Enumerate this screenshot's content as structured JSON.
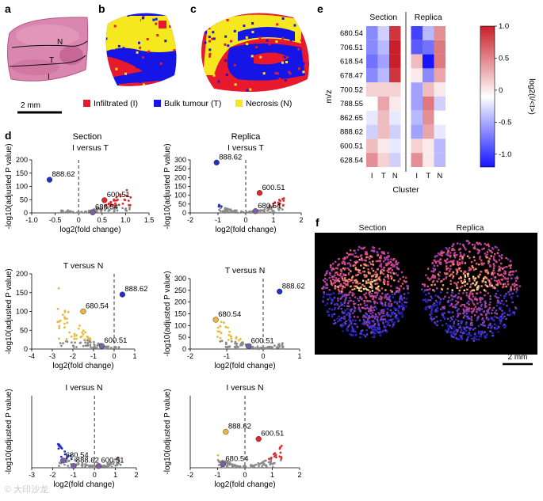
{
  "panel_letters": {
    "a": "a",
    "b": "b",
    "c": "c",
    "d": "d",
    "e": "e",
    "f": "f"
  },
  "panel_a": {
    "region_labels": [
      "N",
      "T",
      "I"
    ],
    "scale_bar": "2 mm"
  },
  "legend_abc": [
    {
      "label": "Infiltrated (I)",
      "color": "#e8192c"
    },
    {
      "label": "Bulk tumour (T)",
      "color": "#1515e6"
    },
    {
      "label": "Necrosis (N)",
      "color": "#f5e81e"
    }
  ],
  "panel_d": {
    "column_titles": [
      "Section",
      "Replica"
    ],
    "point_colors": {
      "grey": "#8a8a8a",
      "red": "#e0282c",
      "blue": "#2230c8",
      "yellow": "#e8b93a",
      "violet": "#7b5fa8"
    },
    "xlabel": "log2(fold change)",
    "ylabel": "-log10(adjusted P value)"
  },
  "chart_data": [
    {
      "type": "scatter",
      "name": "I versus T - Section",
      "title": "I versus T",
      "column": "Section",
      "xlim": [
        -1,
        1.5
      ],
      "xticks": [
        "-1.0",
        "-0.5",
        "0",
        "0.5",
        "1.0",
        "1.5"
      ],
      "ylim": [
        0,
        200
      ],
      "yticks": [
        "0",
        "50",
        "100",
        "150",
        "200"
      ],
      "highlighted": [
        {
          "label": "888.62",
          "x": -0.62,
          "y": 125,
          "color": "#2230c8"
        },
        {
          "label": "600.51",
          "x": 0.55,
          "y": 48,
          "color": "#e0282c"
        },
        {
          "label": "680.54",
          "x": 0.3,
          "y": 2,
          "color": "#7b5fa8"
        }
      ],
      "xlabel": "log2(fold change)",
      "ylabel": "-log10(adjusted P value)"
    },
    {
      "type": "scatter",
      "name": "I versus T - Replica",
      "title": "I versus T",
      "column": "Replica",
      "xlim": [
        -2,
        2
      ],
      "xticks": [
        "-2",
        "-1",
        "0",
        "1",
        "2"
      ],
      "ylim": [
        0,
        300
      ],
      "yticks": [
        "0",
        "50",
        "100",
        "150",
        "200",
        "250",
        "300"
      ],
      "highlighted": [
        {
          "label": "888.62",
          "x": -1.05,
          "y": 285,
          "color": "#2230c8"
        },
        {
          "label": "600.51",
          "x": 0.5,
          "y": 113,
          "color": "#e0282c"
        },
        {
          "label": "680.54",
          "x": 0.35,
          "y": 10,
          "color": "#7b5fa8"
        }
      ],
      "xlabel": "log2(fold change)",
      "ylabel": "-log10(adjusted P value)"
    },
    {
      "type": "scatter",
      "name": "T versus N - Section",
      "title": "T versus N",
      "column": "Section",
      "xlim": [
        -4,
        1
      ],
      "xticks": [
        "-4",
        "-3",
        "-2",
        "-1",
        "0",
        "1"
      ],
      "ylim": [
        0,
        200
      ],
      "yticks": [
        "0",
        "50",
        "100",
        "150",
        "200"
      ],
      "highlighted": [
        {
          "label": "888.62",
          "x": 0.4,
          "y": 145,
          "color": "#2230c8"
        },
        {
          "label": "680.54",
          "x": -1.5,
          "y": 100,
          "color": "#e8b93a"
        },
        {
          "label": "600.51",
          "x": -0.6,
          "y": 8,
          "color": "#7b5fa8"
        }
      ],
      "xlabel": "log2(fold change)",
      "ylabel": "-log10(adjusted P value)"
    },
    {
      "type": "scatter",
      "name": "T versus N - Replica",
      "title": "T versus N",
      "column": "Replica",
      "xlim": [
        -2,
        1
      ],
      "xticks": [
        "-2",
        "-1",
        "0",
        "1"
      ],
      "ylim": [
        0,
        300
      ],
      "yticks": [
        "0",
        "50",
        "100",
        "150",
        "200",
        "250",
        "300"
      ],
      "highlighted": [
        {
          "label": "888.62",
          "x": 0.45,
          "y": 245,
          "color": "#2230c8"
        },
        {
          "label": "680.54",
          "x": -1.3,
          "y": 125,
          "color": "#e8b93a"
        },
        {
          "label": "600.51",
          "x": -0.4,
          "y": 12,
          "color": "#7b5fa8"
        }
      ],
      "xlabel": "log2(fold change)",
      "ylabel": "-log10(adjusted P value)"
    },
    {
      "type": "scatter",
      "name": "I versus N - Section",
      "title": "I versus N",
      "column": "Section",
      "xlim": [
        -3,
        2
      ],
      "xticks": [
        "-3",
        "-2",
        "-1",
        "0",
        "1",
        "2"
      ],
      "ylim": [
        0,
        200
      ],
      "yticks": [],
      "highlighted": [
        {
          "label": "680.54",
          "x": -1.5,
          "y": 20,
          "color": "#7b5fa8"
        },
        {
          "label": "888.62",
          "x": -1.0,
          "y": 5,
          "color": "#7b5fa8"
        },
        {
          "label": "600.51",
          "x": 0.2,
          "y": 5,
          "color": "#7b5fa8"
        }
      ],
      "xlabel": "log2(fold change)",
      "ylabel": "-log10(adjusted P value)"
    },
    {
      "type": "scatter",
      "name": "I versus N - Replica",
      "title": "I versus N",
      "column": "Replica",
      "xlim": [
        -2,
        2
      ],
      "xticks": [
        "-2",
        "-1",
        "0",
        "1",
        "2"
      ],
      "ylim": [
        0,
        200
      ],
      "yticks": [],
      "highlighted": [
        {
          "label": "888.62",
          "x": -0.7,
          "y": 100,
          "color": "#e8b93a"
        },
        {
          "label": "600.51",
          "x": 0.5,
          "y": 80,
          "color": "#e0282c"
        },
        {
          "label": "680.54",
          "x": -0.8,
          "y": 10,
          "color": "#7b5fa8"
        }
      ],
      "xlabel": "log2(fold change)",
      "ylabel": "-log10(adjusted P value)"
    },
    {
      "type": "heatmap",
      "name": "Cluster heatmap",
      "column_groups": [
        "Section",
        "Replica"
      ],
      "columns": [
        "I",
        "T",
        "N",
        "I",
        "T",
        "N"
      ],
      "rows": [
        "680.54",
        "706.51",
        "618.54",
        "678.47",
        "700.52",
        "788.55",
        "862.65",
        "888.62",
        "600.51",
        "628.54"
      ],
      "values": [
        [
          -0.5,
          -0.2,
          0.9,
          -0.8,
          -0.3,
          0.5
        ],
        [
          -0.5,
          -0.3,
          1.0,
          -0.7,
          -0.6,
          0.6
        ],
        [
          -0.6,
          -0.4,
          1.0,
          0.3,
          -1.0,
          0.6
        ],
        [
          -0.5,
          -0.3,
          0.9,
          0.1,
          -0.5,
          0.4
        ],
        [
          0.2,
          0.2,
          0.2,
          -0.4,
          0.3,
          0.1
        ],
        [
          0.0,
          0.4,
          0.1,
          -0.4,
          0.6,
          -0.2
        ],
        [
          -0.1,
          0.3,
          -0.1,
          -0.3,
          0.5,
          0.0
        ],
        [
          -0.2,
          0.3,
          -0.2,
          -0.4,
          0.4,
          -0.1
        ],
        [
          0.3,
          0.1,
          -0.1,
          0.2,
          0.1,
          -0.3
        ],
        [
          0.5,
          0.2,
          -0.2,
          0.5,
          0.1,
          -0.3
        ]
      ],
      "ylabel": "m/z",
      "xlabel": "Cluster",
      "colorbar": {
        "label": "log2(I/<I>)",
        "ticks": [
          "1.0",
          "0.5",
          "0",
          "-0.5",
          "-1.0"
        ],
        "min": -1.2,
        "max": 1.0
      }
    }
  ],
  "panel_f": {
    "titles": [
      "Section",
      "Replica"
    ],
    "scale_bar": "2 mm"
  },
  "watermark": "© 大印沙龙"
}
